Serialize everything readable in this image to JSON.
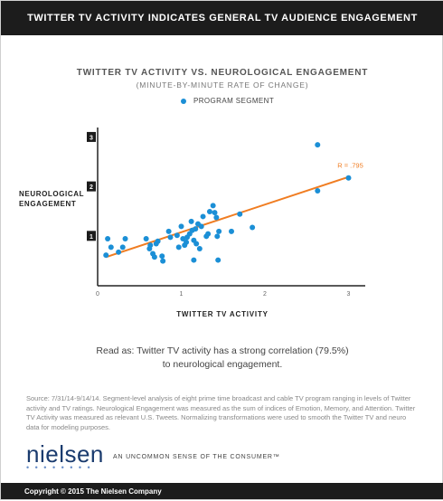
{
  "banner": {
    "title": "TWITTER TV ACTIVITY INDICATES GENERAL TV AUDIENCE ENGAGEMENT"
  },
  "chart_data": {
    "type": "scatter",
    "title": "TWITTER TV ACTIVITY VS. NEUROLOGICAL ENGAGEMENT",
    "subtitle": "(MINUTE-BY-MINUTE RATE OF CHANGE)",
    "xlabel": "TWITTER TV ACTIVITY",
    "ylabel": [
      "NEUROLOGICAL",
      "ENGAGEMENT"
    ],
    "xlim": [
      0,
      3.2
    ],
    "ylim": [
      0,
      3.2
    ],
    "x_ticks": [
      "0",
      "1",
      "2",
      "3"
    ],
    "x_tick_values": [
      0,
      1,
      2,
      3
    ],
    "y_ticks": [
      "1",
      "2",
      "3"
    ],
    "y_tick_values": [
      1,
      2,
      3
    ],
    "grid": false,
    "legend_position": "top",
    "series": [
      {
        "name": "PROGRAM SEGMENT",
        "color": "#1b8fd6",
        "points": [
          [
            0.1,
            0.62
          ],
          [
            0.12,
            0.95
          ],
          [
            0.16,
            0.78
          ],
          [
            0.25,
            0.68
          ],
          [
            0.3,
            0.78
          ],
          [
            0.33,
            0.95
          ],
          [
            0.58,
            0.95
          ],
          [
            0.62,
            0.75
          ],
          [
            0.63,
            0.82
          ],
          [
            0.66,
            0.65
          ],
          [
            0.68,
            0.58
          ],
          [
            0.7,
            0.85
          ],
          [
            0.72,
            0.9
          ],
          [
            0.77,
            0.6
          ],
          [
            0.78,
            0.5
          ],
          [
            0.85,
            1.1
          ],
          [
            0.87,
            0.98
          ],
          [
            0.95,
            1.02
          ],
          [
            0.97,
            0.78
          ],
          [
            1.0,
            1.2
          ],
          [
            1.02,
            0.95
          ],
          [
            1.04,
            0.82
          ],
          [
            1.06,
            0.88
          ],
          [
            1.07,
            0.98
          ],
          [
            1.1,
            1.05
          ],
          [
            1.12,
            1.3
          ],
          [
            1.13,
            1.12
          ],
          [
            1.15,
            0.92
          ],
          [
            1.17,
            1.15
          ],
          [
            1.18,
            0.85
          ],
          [
            1.2,
            1.25
          ],
          [
            1.22,
            0.75
          ],
          [
            1.24,
            1.2
          ],
          [
            1.26,
            1.4
          ],
          [
            1.3,
            1.0
          ],
          [
            1.32,
            1.05
          ],
          [
            1.34,
            1.5
          ],
          [
            1.38,
            1.62
          ],
          [
            1.4,
            1.48
          ],
          [
            1.42,
            1.38
          ],
          [
            1.45,
            1.1
          ],
          [
            1.43,
            1.0
          ],
          [
            1.44,
            0.52
          ],
          [
            1.6,
            1.1
          ],
          [
            1.7,
            1.45
          ],
          [
            1.85,
            1.18
          ],
          [
            1.15,
            0.52
          ],
          [
            2.63,
            2.85
          ],
          [
            2.63,
            1.92
          ],
          [
            3.0,
            2.18
          ]
        ]
      }
    ],
    "trendline": {
      "from": [
        0.1,
        0.58
      ],
      "to": [
        3.0,
        2.2
      ],
      "color": "#f07d22",
      "label": "R = .795"
    }
  },
  "read_as": {
    "line1": "Read as: Twitter TV activity has a strong correlation (79.5%)",
    "line2": "to neurological engagement."
  },
  "source": "Source: 7/31/14-9/14/14. Segment-level analysis of eight prime time broadcast and cable TV program ranging in levels of Twitter activity and TV ratings. Neurological Engagement was measured as the sum of indices of Emotion, Memory, and Attention. Twitter TV Activity was measured as relevant U.S. Tweets. Normalizing transformations were used to smooth the Twitter TV and neuro data for modeling purposes.",
  "footer": {
    "logo": "nielsen",
    "logo_dots": "• • • • • • • •",
    "tagline": "AN UNCOMMON SENSE OF THE CONSUMER™",
    "copyright": "Copyright © 2015 The Nielsen Company"
  }
}
